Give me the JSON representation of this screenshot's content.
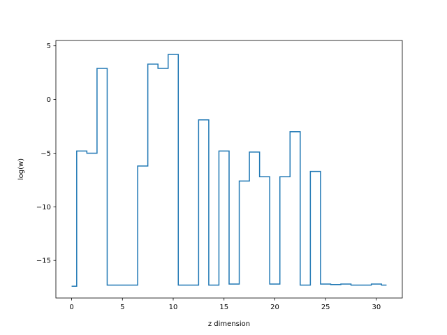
{
  "chart_data": {
    "type": "line",
    "drawstyle": "steps-mid",
    "title": "",
    "xlabel": "z dimension",
    "ylabel": "log(w)",
    "xlim": [
      -1.55,
      32.55
    ],
    "ylim": [
      -18.5,
      5.5
    ],
    "xticks": [
      0,
      5,
      10,
      15,
      20,
      25,
      30
    ],
    "yticks": [
      -15,
      -10,
      -5,
      0,
      5
    ],
    "ytick_labels": [
      "−15",
      "−10",
      "−5",
      "0",
      "5"
    ],
    "grid": false,
    "line_color": "#1f77b4",
    "series": [
      {
        "x": [
          0,
          1,
          2,
          3,
          4,
          5,
          6,
          7,
          8,
          9,
          10,
          11,
          12,
          13,
          14,
          15,
          16,
          17,
          18,
          19,
          20,
          21,
          22,
          23,
          24,
          25,
          26,
          27,
          28,
          29,
          30,
          31
        ],
        "values": [
          -17.4,
          -4.8,
          -5.0,
          2.9,
          -17.3,
          -17.3,
          -17.3,
          -6.2,
          3.3,
          2.9,
          4.2,
          -17.3,
          -17.3,
          -1.9,
          -17.3,
          -4.8,
          -17.2,
          -7.6,
          -4.9,
          -7.2,
          -17.2,
          -7.2,
          -3.0,
          -17.3,
          -6.7,
          -17.2,
          -17.25,
          -17.2,
          -17.3,
          -17.3,
          -17.2,
          -17.3
        ]
      }
    ]
  }
}
